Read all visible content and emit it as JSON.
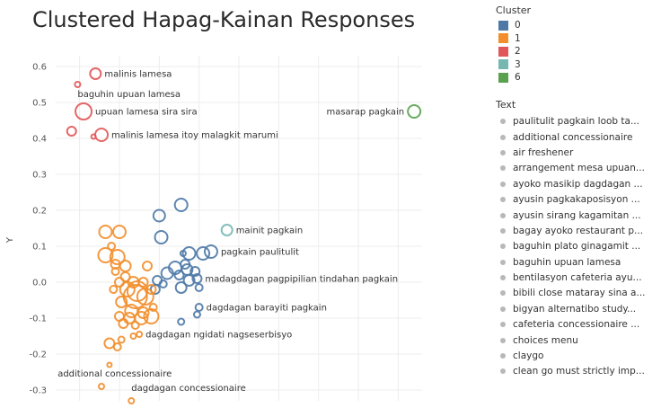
{
  "chart_data": {
    "type": "scatter",
    "title": "Clustered Hapag-Kainan Responses",
    "ylabel": "Y",
    "xlabel": "",
    "ylim": [
      -0.33,
      0.63
    ],
    "xlim": [
      -0.26,
      0.66
    ],
    "yticks": [
      "0.6",
      "0.5",
      "0.4",
      "0.3",
      "0.2",
      "0.1",
      "0.0",
      "-0.1",
      "-0.2",
      "-0.3"
    ],
    "ytick_values": [
      0.6,
      0.5,
      0.4,
      0.3,
      0.2,
      0.1,
      0.0,
      -0.1,
      -0.2,
      -0.3
    ],
    "grid": true,
    "cluster_legend_title": "Cluster",
    "clusters": [
      {
        "name": "0",
        "color": "#4e79a7"
      },
      {
        "name": "1",
        "color": "#f28e2b"
      },
      {
        "name": "2",
        "color": "#e15759"
      },
      {
        "name": "3",
        "color": "#76b7b2"
      },
      {
        "name": "6",
        "color": "#59a14f"
      }
    ],
    "text_legend_title": "Text",
    "text_items": [
      "paulitulit pagkain loob ta...",
      "additional concessionaire",
      "air freshener",
      "arrangement mesa upuan...",
      "ayoko masikip dagdagan ...",
      "ayusin pagkakaposisyon ...",
      "ayusin sirang kagamitan ...",
      "bagay ayoko restaurant p...",
      "baguhin plato ginagamit ...",
      "baguhin upuan lamesa",
      "bentilasyon cafeteria ayu...",
      "bibili close mataray sina a...",
      "bigyan alternatibo study...",
      "cafeteria concessionaire ...",
      "choices menu",
      "claygo",
      "clean go must strictly imp..."
    ],
    "points": [
      {
        "cluster": "2",
        "x": -0.16,
        "y": 0.58,
        "s": 6,
        "label": "malinis lamesa"
      },
      {
        "cluster": "2",
        "x": -0.205,
        "y": 0.55,
        "s": 3,
        "label": ""
      },
      {
        "cluster": "2",
        "x": -0.19,
        "y": 0.475,
        "s": 9,
        "label": "upuan lamesa sira sira"
      },
      {
        "cluster": "2",
        "x": -0.22,
        "y": 0.42,
        "s": 5,
        "label": ""
      },
      {
        "cluster": "2",
        "x": -0.165,
        "y": 0.405,
        "s": 2.5,
        "label": ""
      },
      {
        "cluster": "2",
        "x": -0.145,
        "y": 0.41,
        "s": 7,
        "label": "malinis lamesa itoy malagkit marumi"
      },
      {
        "cluster": "6",
        "x": 0.64,
        "y": 0.475,
        "s": 7,
        "label": "masarap pagkain"
      },
      {
        "cluster": "3",
        "x": 0.17,
        "y": 0.145,
        "s": 6,
        "label": "mainit pagkain"
      },
      {
        "cluster": "0",
        "x": 0.055,
        "y": 0.215,
        "s": 7,
        "label": ""
      },
      {
        "cluster": "0",
        "x": 0.0,
        "y": 0.185,
        "s": 6.5,
        "label": ""
      },
      {
        "cluster": "0",
        "x": 0.005,
        "y": 0.125,
        "s": 7,
        "label": ""
      },
      {
        "cluster": "0",
        "x": 0.13,
        "y": 0.085,
        "s": 7,
        "label": "pagkain paulitulit"
      },
      {
        "cluster": "0",
        "x": 0.11,
        "y": 0.08,
        "s": 7,
        "label": ""
      },
      {
        "cluster": "0",
        "x": 0.075,
        "y": 0.08,
        "s": 7,
        "label": ""
      },
      {
        "cluster": "0",
        "x": 0.06,
        "y": 0.08,
        "s": 3,
        "label": ""
      },
      {
        "cluster": "0",
        "x": 0.065,
        "y": 0.05,
        "s": 5,
        "label": ""
      },
      {
        "cluster": "0",
        "x": 0.04,
        "y": 0.04,
        "s": 7,
        "label": ""
      },
      {
        "cluster": "0",
        "x": 0.07,
        "y": 0.035,
        "s": 6,
        "label": ""
      },
      {
        "cluster": "0",
        "x": 0.02,
        "y": 0.025,
        "s": 6.5,
        "label": ""
      },
      {
        "cluster": "0",
        "x": 0.05,
        "y": 0.02,
        "s": 5,
        "label": ""
      },
      {
        "cluster": "0",
        "x": 0.09,
        "y": 0.03,
        "s": 5,
        "label": ""
      },
      {
        "cluster": "0",
        "x": 0.075,
        "y": 0.005,
        "s": 6,
        "label": ""
      },
      {
        "cluster": "0",
        "x": -0.005,
        "y": 0.005,
        "s": 5,
        "label": ""
      },
      {
        "cluster": "0",
        "x": 0.01,
        "y": -0.005,
        "s": 4,
        "label": ""
      },
      {
        "cluster": "0",
        "x": 0.095,
        "y": 0.01,
        "s": 5,
        "label": "madagdagan pagpipilian tindahan pagkain"
      },
      {
        "cluster": "0",
        "x": 0.1,
        "y": -0.015,
        "s": 4,
        "label": ""
      },
      {
        "cluster": "0",
        "x": -0.01,
        "y": -0.02,
        "s": 5,
        "label": ""
      },
      {
        "cluster": "0",
        "x": 0.055,
        "y": -0.015,
        "s": 6,
        "label": ""
      },
      {
        "cluster": "0",
        "x": 0.1,
        "y": -0.07,
        "s": 4,
        "label": "dagdagan barayiti pagkain"
      },
      {
        "cluster": "0",
        "x": 0.095,
        "y": -0.09,
        "s": 3.5,
        "label": ""
      },
      {
        "cluster": "0",
        "x": 0.055,
        "y": -0.11,
        "s": 3.5,
        "label": ""
      },
      {
        "cluster": "1",
        "x": -0.135,
        "y": 0.14,
        "s": 7,
        "label": ""
      },
      {
        "cluster": "1",
        "x": -0.1,
        "y": 0.14,
        "s": 7,
        "label": ""
      },
      {
        "cluster": "1",
        "x": -0.12,
        "y": 0.1,
        "s": 4,
        "label": ""
      },
      {
        "cluster": "1",
        "x": -0.135,
        "y": 0.075,
        "s": 8,
        "label": ""
      },
      {
        "cluster": "1",
        "x": -0.105,
        "y": 0.07,
        "s": 8,
        "label": ""
      },
      {
        "cluster": "1",
        "x": -0.11,
        "y": 0.05,
        "s": 5,
        "label": ""
      },
      {
        "cluster": "1",
        "x": -0.085,
        "y": 0.045,
        "s": 6,
        "label": ""
      },
      {
        "cluster": "1",
        "x": -0.03,
        "y": 0.045,
        "s": 5,
        "label": ""
      },
      {
        "cluster": "1",
        "x": -0.11,
        "y": 0.03,
        "s": 4,
        "label": ""
      },
      {
        "cluster": "1",
        "x": -0.085,
        "y": 0.015,
        "s": 5,
        "label": ""
      },
      {
        "cluster": "1",
        "x": -0.1,
        "y": 0.0,
        "s": 5,
        "label": ""
      },
      {
        "cluster": "1",
        "x": -0.065,
        "y": 0.0,
        "s": 6,
        "label": ""
      },
      {
        "cluster": "1",
        "x": -0.04,
        "y": 0.0,
        "s": 5,
        "label": ""
      },
      {
        "cluster": "1",
        "x": -0.115,
        "y": -0.02,
        "s": 4,
        "label": ""
      },
      {
        "cluster": "1",
        "x": -0.08,
        "y": -0.02,
        "s": 8,
        "label": ""
      },
      {
        "cluster": "1",
        "x": -0.055,
        "y": -0.025,
        "s": 11,
        "label": ""
      },
      {
        "cluster": "1",
        "x": -0.06,
        "y": -0.04,
        "s": 13,
        "label": ""
      },
      {
        "cluster": "1",
        "x": -0.035,
        "y": -0.04,
        "s": 9,
        "label": ""
      },
      {
        "cluster": "1",
        "x": -0.02,
        "y": -0.02,
        "s": 5,
        "label": ""
      },
      {
        "cluster": "1",
        "x": -0.095,
        "y": -0.055,
        "s": 6,
        "label": ""
      },
      {
        "cluster": "1",
        "x": -0.015,
        "y": -0.07,
        "s": 4,
        "label": ""
      },
      {
        "cluster": "1",
        "x": -0.07,
        "y": -0.08,
        "s": 7,
        "label": ""
      },
      {
        "cluster": "1",
        "x": -0.04,
        "y": -0.085,
        "s": 6,
        "label": ""
      },
      {
        "cluster": "1",
        "x": -0.1,
        "y": -0.095,
        "s": 5,
        "label": ""
      },
      {
        "cluster": "1",
        "x": -0.075,
        "y": -0.1,
        "s": 6,
        "label": ""
      },
      {
        "cluster": "1",
        "x": -0.045,
        "y": -0.1,
        "s": 7,
        "label": ""
      },
      {
        "cluster": "1",
        "x": -0.02,
        "y": -0.095,
        "s": 8,
        "label": ""
      },
      {
        "cluster": "1",
        "x": -0.09,
        "y": -0.115,
        "s": 5,
        "label": ""
      },
      {
        "cluster": "1",
        "x": -0.06,
        "y": -0.12,
        "s": 4,
        "label": ""
      },
      {
        "cluster": "1",
        "x": -0.05,
        "y": -0.145,
        "s": 3,
        "label": "dagdagan ngidati nagseserbisyo"
      },
      {
        "cluster": "1",
        "x": -0.065,
        "y": -0.15,
        "s": 3,
        "label": ""
      },
      {
        "cluster": "1",
        "x": -0.095,
        "y": -0.16,
        "s": 3.5,
        "label": ""
      },
      {
        "cluster": "1",
        "x": -0.125,
        "y": -0.17,
        "s": 5.5,
        "label": ""
      },
      {
        "cluster": "1",
        "x": -0.105,
        "y": -0.18,
        "s": 4,
        "label": ""
      },
      {
        "cluster": "1",
        "x": -0.125,
        "y": -0.23,
        "s": 2.5,
        "label": ""
      },
      {
        "cluster": "1",
        "x": -0.145,
        "y": -0.29,
        "s": 3,
        "label": ""
      },
      {
        "cluster": "1",
        "x": -0.07,
        "y": -0.33,
        "s": 3,
        "label": ""
      }
    ],
    "annotations": [
      {
        "text": "baguhin upuan lamesa",
        "x": -0.205,
        "y": 0.515
      },
      {
        "text": "additional concessionaire",
        "x": -0.255,
        "y": -0.262
      },
      {
        "text": "dagdagan concessionaire",
        "x": -0.07,
        "y": -0.303
      }
    ]
  }
}
